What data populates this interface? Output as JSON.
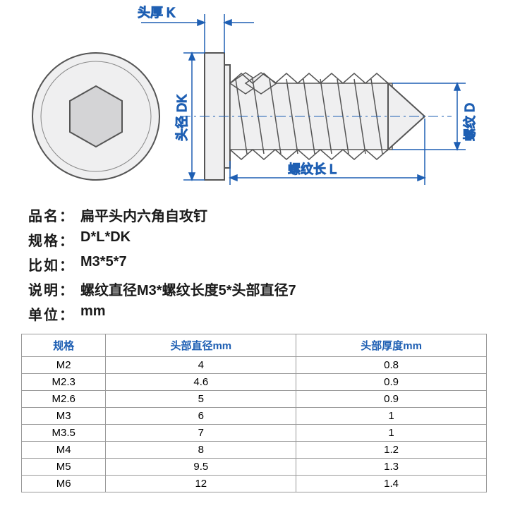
{
  "diagram": {
    "labels": {
      "head_thickness": "头厚  K",
      "head_diameter": "头径 DK",
      "thread_length": "螺纹长  L",
      "thread_diameter": "螺纹  D"
    },
    "colors": {
      "dimension_line": "#1e5fb3",
      "part_outline": "#555555",
      "part_fill": "#efeff0"
    }
  },
  "specs": {
    "name_label": "品名：",
    "name_value": "扁平头内六角自攻钉",
    "format_label": "规格：",
    "format_value": "D*L*DK",
    "example_label": "比如：",
    "example_value": "M3*5*7",
    "explain_label": "说明：",
    "explain_value": "螺纹直径M3*螺纹长度5*头部直径7",
    "unit_label": "单位：",
    "unit_value": "mm"
  },
  "table": {
    "columns": [
      "规格",
      "头部直径mm",
      "头部厚度mm"
    ],
    "rows": [
      [
        "M2",
        "4",
        "0.8"
      ],
      [
        "M2.3",
        "4.6",
        "0.9"
      ],
      [
        "M2.6",
        "5",
        "0.9"
      ],
      [
        "M3",
        "6",
        "1"
      ],
      [
        "M3.5",
        "7",
        "1"
      ],
      [
        "M4",
        "8",
        "1.2"
      ],
      [
        "M5",
        "9.5",
        "1.3"
      ],
      [
        "M6",
        "12",
        "1.4"
      ]
    ],
    "header_color": "#1e5fb3",
    "border_color": "#999999"
  }
}
